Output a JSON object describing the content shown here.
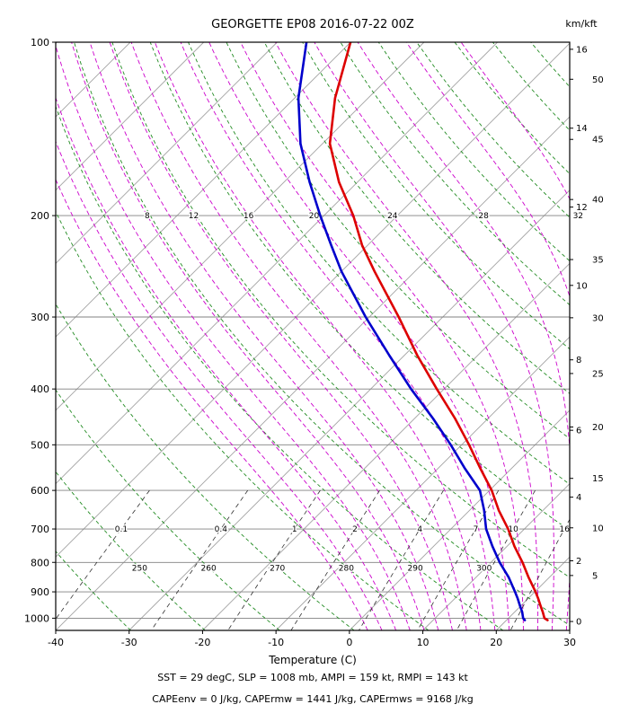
{
  "title": "GEORGETTE EP08 2016-07-22 00Z",
  "axes": {
    "xlabel": "Temperature (C)",
    "right_axis_label": "km/kft",
    "x_ticks": [
      -40,
      -30,
      -20,
      -10,
      0,
      10,
      20,
      30
    ],
    "pressure_ticks": [
      100,
      200,
      300,
      400,
      500,
      600,
      700,
      800,
      900,
      1000
    ],
    "km_ticks": [
      0,
      2,
      4,
      6,
      8,
      10,
      12,
      14,
      16
    ],
    "kft_ticks": [
      5,
      10,
      15,
      20,
      25,
      30,
      35,
      40,
      45,
      50
    ]
  },
  "footer": {
    "line1": "SST = 29 degC, SLP = 1008 mb, AMPI = 159 kt, RMPI = 143 kt",
    "line2": "CAPEenv = 0 J/kg, CAPErmw = 1441 J/kg, CAPErmws = 9168 J/kg"
  },
  "chart_data": {
    "type": "line",
    "subtype": "skew-t-log-p-sounding",
    "title": "GEORGETTE EP08 2016-07-22 00Z",
    "xlabel": "Temperature (C)",
    "x_range_C": [
      -40,
      30
    ],
    "pressure_range_mb": [
      100,
      1050
    ],
    "legend": "none",
    "grid": "skew-t background (isotherms, isobars, dry/moist adiabats, mixing-ratio lines)",
    "colors": {
      "temperature": "#dd0000",
      "dewpoint": "#0000cc",
      "isotherm": "#a3a3a3",
      "pressure_line": "#808080",
      "dry_adiabat": "#228b22",
      "moist_adiabat": "#cc00cc",
      "mixing_ratio": "#303030",
      "frame": "#000000"
    },
    "series": [
      {
        "name": "dewpoint",
        "color": "#0000cc",
        "points_mb_C": [
          [
            1008,
            22.5
          ],
          [
            1000,
            22.0
          ],
          [
            975,
            21.0
          ],
          [
            950,
            19.8
          ],
          [
            925,
            18.6
          ],
          [
            900,
            17.3
          ],
          [
            850,
            14.5
          ],
          [
            800,
            11.2
          ],
          [
            750,
            8.0
          ],
          [
            700,
            4.8
          ],
          [
            650,
            2.0
          ],
          [
            600,
            -1.3
          ],
          [
            550,
            -6.3
          ],
          [
            500,
            -11.5
          ],
          [
            450,
            -17.5
          ],
          [
            400,
            -24.5
          ],
          [
            350,
            -32.0
          ],
          [
            300,
            -40.5
          ],
          [
            250,
            -50.0
          ],
          [
            225,
            -55.0
          ],
          [
            200,
            -60.5
          ],
          [
            175,
            -66.5
          ],
          [
            150,
            -73.0
          ],
          [
            125,
            -79.5
          ],
          [
            100,
            -86.0
          ]
        ]
      },
      {
        "name": "temperature",
        "color": "#dd0000",
        "points_mb_C": [
          [
            1008,
            25.6
          ],
          [
            1000,
            24.9
          ],
          [
            975,
            23.8
          ],
          [
            950,
            22.6
          ],
          [
            925,
            21.4
          ],
          [
            900,
            20.1
          ],
          [
            850,
            17.2
          ],
          [
            800,
            14.3
          ],
          [
            750,
            11.0
          ],
          [
            700,
            7.8
          ],
          [
            650,
            4.0
          ],
          [
            600,
            0.3
          ],
          [
            550,
            -4.2
          ],
          [
            500,
            -9.0
          ],
          [
            450,
            -14.5
          ],
          [
            400,
            -21.0
          ],
          [
            350,
            -28.2
          ],
          [
            300,
            -36.0
          ],
          [
            250,
            -45.5
          ],
          [
            225,
            -50.8
          ],
          [
            200,
            -56.0
          ],
          [
            175,
            -62.5
          ],
          [
            150,
            -69.0
          ],
          [
            125,
            -74.5
          ],
          [
            100,
            -80.0
          ]
        ]
      }
    ],
    "isotherms_C": {
      "start": -120,
      "end": 30,
      "step": 10
    },
    "dry_adiabats_K": {
      "start": 220,
      "end": 440,
      "step": 10,
      "labels": [
        250,
        260,
        270,
        280,
        290,
        300
      ],
      "label_pressure_mb": 800
    },
    "moist_adiabats_C": {
      "values": [
        0,
        2,
        4,
        6,
        8,
        10,
        12,
        14,
        16,
        18,
        20,
        22,
        24,
        26,
        28,
        30,
        32
      ],
      "labels": [
        8,
        12,
        16,
        20,
        24,
        28,
        32
      ],
      "label_pressure_mb": 200
    },
    "mixing_ratio_g_kg": {
      "values": [
        0.1,
        0.4,
        1,
        2,
        4,
        7,
        10,
        16
      ],
      "label_pressure_mb": 700,
      "top_mb": 600
    }
  }
}
